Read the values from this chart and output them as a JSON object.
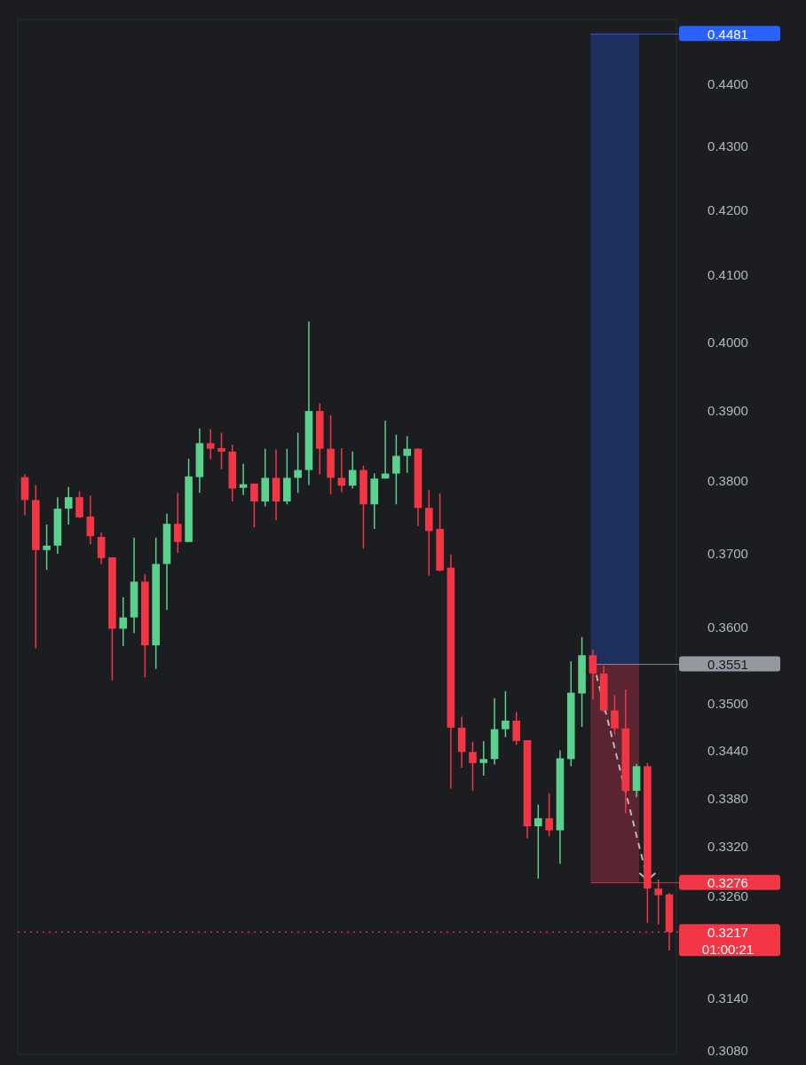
{
  "chart_data": {
    "type": "candlestick",
    "categories": [
      null,
      null,
      null,
      null,
      null,
      null,
      null,
      null,
      null,
      null,
      null,
      null,
      null,
      null,
      null,
      null,
      null,
      null,
      null,
      null,
      null,
      null,
      null,
      null,
      null,
      null,
      null,
      null,
      null,
      null,
      null,
      null,
      null,
      null,
      null,
      null,
      null,
      null,
      null,
      null,
      null,
      null,
      null,
      null,
      null,
      null,
      null,
      null,
      null,
      null,
      null,
      null,
      null,
      null,
      null,
      null,
      null,
      null,
      null,
      null
    ],
    "ohlc": [
      [
        0.3805,
        0.3809,
        0.3752,
        0.3773
      ],
      [
        0.3773,
        0.3794,
        0.3572,
        0.3704
      ],
      [
        0.3704,
        0.3739,
        0.3677,
        0.371
      ],
      [
        0.371,
        0.3777,
        0.3699,
        0.3761
      ],
      [
        0.3761,
        0.3791,
        0.3739,
        0.3777
      ],
      [
        0.3777,
        0.3785,
        0.3748,
        0.3749
      ],
      [
        0.375,
        0.3779,
        0.3712,
        0.3723
      ],
      [
        0.3722,
        0.3728,
        0.3685,
        0.3693
      ],
      [
        0.3694,
        0.3694,
        0.353,
        0.3598
      ],
      [
        0.3598,
        0.364,
        0.3575,
        0.3613
      ],
      [
        0.3613,
        0.3721,
        0.3592,
        0.3661
      ],
      [
        0.3661,
        0.3671,
        0.3534,
        0.3576
      ],
      [
        0.3576,
        0.3721,
        0.3545,
        0.3685
      ],
      [
        0.3685,
        0.3754,
        0.3623,
        0.374
      ],
      [
        0.374,
        0.3783,
        0.37,
        0.3715
      ],
      [
        0.3715,
        0.3831,
        0.3715,
        0.3806
      ],
      [
        0.3805,
        0.3874,
        0.3783,
        0.3853
      ],
      [
        0.3853,
        0.3873,
        0.383,
        0.3845
      ],
      [
        0.3846,
        0.3868,
        0.3816,
        0.3841
      ],
      [
        0.3841,
        0.3851,
        0.3771,
        0.3789
      ],
      [
        0.379,
        0.3824,
        0.378,
        0.3795
      ],
      [
        0.3796,
        0.3796,
        0.3735,
        0.3771
      ],
      [
        0.3771,
        0.3845,
        0.3764,
        0.3804
      ],
      [
        0.3804,
        0.3844,
        0.3745,
        0.3771
      ],
      [
        0.3771,
        0.3845,
        0.3767,
        0.3804
      ],
      [
        0.3804,
        0.3868,
        0.3783,
        0.3815
      ],
      [
        0.3815,
        0.403,
        0.3794,
        0.3899
      ],
      [
        0.3899,
        0.391,
        0.3809,
        0.3845
      ],
      [
        0.3845,
        0.3893,
        0.3781,
        0.3804
      ],
      [
        0.3804,
        0.3846,
        0.3784,
        0.3793
      ],
      [
        0.3793,
        0.3841,
        0.3789,
        0.3815
      ],
      [
        0.3815,
        0.3821,
        0.3706,
        0.3767
      ],
      [
        0.3767,
        0.381,
        0.3733,
        0.3803
      ],
      [
        0.3803,
        0.3885,
        0.3803,
        0.381
      ],
      [
        0.381,
        0.3865,
        0.3767,
        0.3835
      ],
      [
        0.3835,
        0.3863,
        0.3811,
        0.3845
      ],
      [
        0.3845,
        0.3846,
        0.3737,
        0.3762
      ],
      [
        0.3762,
        0.3787,
        0.3669,
        0.373
      ],
      [
        0.3733,
        0.3782,
        0.3675,
        0.3676
      ],
      [
        0.368,
        0.3698,
        0.3392,
        0.3469
      ],
      [
        0.3469,
        0.3483,
        0.3418,
        0.3438
      ],
      [
        0.3438,
        0.3451,
        0.3389,
        0.3424
      ],
      [
        0.3424,
        0.3452,
        0.3408,
        0.3429
      ],
      [
        0.3429,
        0.3507,
        0.3422,
        0.3467
      ],
      [
        0.3467,
        0.3516,
        0.3457,
        0.3478
      ],
      [
        0.3478,
        0.3489,
        0.3447,
        0.3452
      ],
      [
        0.3453,
        0.3453,
        0.333,
        0.3345
      ],
      [
        0.3345,
        0.3372,
        0.3281,
        0.3355
      ],
      [
        0.3355,
        0.3386,
        0.3333,
        0.334
      ],
      [
        0.334,
        0.344,
        0.3299,
        0.343
      ],
      [
        0.3429,
        0.3555,
        0.342,
        0.3514
      ],
      [
        0.3513,
        0.3587,
        0.347,
        0.3563
      ],
      [
        0.3563,
        0.357,
        0.3505,
        0.3539
      ],
      [
        0.3539,
        0.3549,
        0.3489,
        0.3491
      ],
      [
        0.3491,
        0.3511,
        0.346,
        0.3468
      ],
      [
        0.3468,
        0.3518,
        0.3361,
        0.3389
      ],
      [
        0.3389,
        0.3423,
        0.3381,
        0.342
      ],
      [
        0.342,
        0.3424,
        0.3228,
        0.3269
      ],
      [
        0.3269,
        0.328,
        0.3226,
        0.3261
      ],
      [
        0.3262,
        0.3264,
        0.3195,
        0.3217
      ]
    ],
    "colors": [
      "#f23645",
      "#f23645",
      "#5ad18d",
      "#5ad18d",
      "#5ad18d",
      "#f23645",
      "#f23645",
      "#f23645",
      "#f23645",
      "#5ad18d",
      "#5ad18d",
      "#f23645",
      "#5ad18d",
      "#5ad18d",
      "#f23645",
      "#5ad18d",
      "#5ad18d",
      "#f23645",
      "#f23645",
      "#f23645",
      "#5ad18d",
      "#f23645",
      "#5ad18d",
      "#f23645",
      "#5ad18d",
      "#5ad18d",
      "#5ad18d",
      "#f23645",
      "#f23645",
      "#f23645",
      "#5ad18d",
      "#f23645",
      "#5ad18d",
      "#5ad18d",
      "#5ad18d",
      "#5ad18d",
      "#f23645",
      "#f23645",
      "#f23645",
      "#f23645",
      "#f23645",
      "#f23645",
      "#5ad18d",
      "#5ad18d",
      "#5ad18d",
      "#f23645",
      "#f23645",
      "#5ad18d",
      "#f23645",
      "#5ad18d",
      "#5ad18d",
      "#5ad18d",
      "#f23645",
      "#f23645",
      "#f23645",
      "#f23645",
      "#5ad18d",
      "#f23645",
      "#f23645",
      "#f23645"
    ],
    "log": true,
    "ylim": [
      0.3075,
      0.4505
    ],
    "yticks": [
      {
        "value": 0.44,
        "label": "0.4400"
      },
      {
        "value": 0.43,
        "label": "0.4300"
      },
      {
        "value": 0.42,
        "label": "0.4200"
      },
      {
        "value": 0.41,
        "label": "0.4100"
      },
      {
        "value": 0.4,
        "label": "0.4000"
      },
      {
        "value": 0.39,
        "label": "0.3900"
      },
      {
        "value": 0.38,
        "label": "0.3800"
      },
      {
        "value": 0.37,
        "label": "0.3700"
      },
      {
        "value": 0.36,
        "label": "0.3600"
      },
      {
        "value": 0.35,
        "label": "0.3500"
      },
      {
        "value": 0.344,
        "label": "0.3440"
      },
      {
        "value": 0.338,
        "label": "0.3380"
      },
      {
        "value": 0.332,
        "label": "0.3320"
      },
      {
        "value": 0.326,
        "label": "0.3260"
      },
      {
        "value": 0.314,
        "label": "0.3140"
      },
      {
        "value": 0.308,
        "label": "0.3080"
      }
    ],
    "bands": [
      {
        "axis": "y",
        "from": 0.3551,
        "to": 0.4481,
        "color": "#1f2f5e"
      },
      {
        "axis": "y",
        "from": 0.3276,
        "to": 0.3551,
        "color": "#5a2530"
      }
    ],
    "ref_lines": [
      {
        "axis": "y",
        "value": 0.4481,
        "label": "0.4481",
        "color": "#2962ff"
      },
      {
        "axis": "y",
        "value": 0.3551,
        "label": "0.3551",
        "color": "#9598a1"
      },
      {
        "axis": "y",
        "value": 0.3276,
        "label": "0.3276",
        "color": "#f23645"
      },
      {
        "axis": "y",
        "value": 0.3217,
        "label": "0.3217",
        "color": "#f23645",
        "line_style": "dotted"
      }
    ],
    "annotations": [
      "01:00:21"
    ]
  }
}
